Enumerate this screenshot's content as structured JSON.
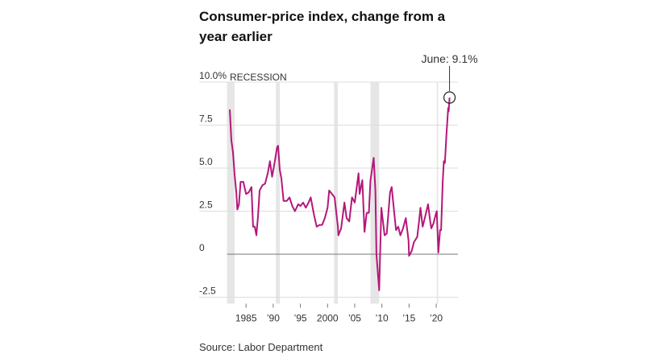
{
  "chart_data": {
    "type": "line",
    "title": "Consumer-price index, change from a year earlier",
    "source": "Source: Labor Department",
    "recession_label": "RECESSION",
    "annotation": "June: 9.1%",
    "recession_color": "#e6e6e6",
    "recessions": [
      [
        1981.5,
        1982.9
      ],
      [
        1990.5,
        1991.2
      ],
      [
        2001.2,
        2001.9
      ],
      [
        2007.9,
        2009.5
      ],
      [
        2020.1,
        2020.35
      ]
    ],
    "xlim": [
      1981.5,
      2024
    ],
    "ylim": [
      -2.5,
      10
    ],
    "xticks": [
      {
        "value": 1985,
        "label": "1985"
      },
      {
        "value": 1990,
        "label": "’90"
      },
      {
        "value": 1995,
        "label": "’95"
      },
      {
        "value": 2000,
        "label": "2000"
      },
      {
        "value": 2005,
        "label": "’05"
      },
      {
        "value": 2010,
        "label": "’10"
      },
      {
        "value": 2015,
        "label": "’15"
      },
      {
        "value": 2020,
        "label": "’20"
      }
    ],
    "yticks": [
      {
        "value": -2.5,
        "label": "-2.5"
      },
      0,
      2.5,
      {
        "value": 5,
        "label": "5.0"
      },
      7.5,
      {
        "value": 10,
        "label": "10.0%"
      }
    ],
    "grid": true,
    "series": [
      {
        "name": "CPI",
        "color": "#b5177a",
        "x": [
          1982.0,
          1982.3,
          1982.6,
          1982.9,
          1983.2,
          1983.4,
          1983.7,
          1984.0,
          1984.5,
          1985.0,
          1985.5,
          1986.0,
          1986.3,
          1986.6,
          1986.9,
          1987.2,
          1987.5,
          1988.0,
          1988.5,
          1989.0,
          1989.4,
          1989.8,
          1990.2,
          1990.7,
          1990.9,
          1991.2,
          1991.5,
          1991.9,
          1992.5,
          1993.0,
          1993.5,
          1994.0,
          1994.6,
          1995.0,
          1995.5,
          1996.0,
          1996.5,
          1996.9,
          1997.5,
          1998.0,
          1998.5,
          1999.0,
          1999.5,
          2000.0,
          2000.3,
          2000.8,
          2001.3,
          2001.9,
          2002.0,
          2002.5,
          2003.1,
          2003.5,
          2004.0,
          2004.5,
          2005.0,
          2005.7,
          2005.9,
          2006.4,
          2006.8,
          2007.2,
          2007.6,
          2007.9,
          2008.5,
          2008.8,
          2009.0,
          2009.5,
          2009.9,
          2010.5,
          2010.9,
          2011.5,
          2011.8,
          2012.3,
          2012.6,
          2013.0,
          2013.4,
          2013.9,
          2014.4,
          2014.9,
          2015.0,
          2015.5,
          2015.9,
          2016.5,
          2016.9,
          2017.1,
          2017.5,
          2017.9,
          2018.5,
          2018.9,
          2019.1,
          2019.5,
          2019.9,
          2020.1,
          2020.4,
          2020.7,
          2020.9,
          2021.2,
          2021.4,
          2021.6,
          2021.9,
          2022.2,
          2022.3,
          2022.45
        ],
        "values": [
          8.4,
          6.6,
          5.9,
          4.6,
          3.6,
          2.6,
          2.9,
          4.2,
          4.2,
          3.5,
          3.6,
          3.9,
          1.6,
          1.6,
          1.1,
          2.2,
          3.7,
          4.0,
          4.1,
          4.7,
          5.4,
          4.5,
          5.2,
          6.2,
          6.3,
          4.9,
          4.4,
          3.1,
          3.1,
          3.3,
          2.8,
          2.5,
          2.9,
          2.8,
          3.0,
          2.7,
          3.0,
          3.3,
          2.3,
          1.6,
          1.7,
          1.7,
          2.1,
          2.7,
          3.7,
          3.5,
          3.3,
          1.6,
          1.1,
          1.5,
          3.0,
          2.1,
          1.9,
          3.3,
          3.0,
          4.7,
          3.5,
          4.3,
          1.3,
          2.4,
          2.4,
          4.3,
          5.6,
          3.7,
          0.0,
          -2.1,
          2.7,
          1.1,
          1.2,
          3.6,
          3.9,
          2.3,
          1.4,
          1.6,
          1.1,
          1.5,
          2.1,
          0.8,
          -0.1,
          0.2,
          0.7,
          1.0,
          2.1,
          2.7,
          1.6,
          2.1,
          2.9,
          1.9,
          1.5,
          1.8,
          2.3,
          2.5,
          0.1,
          1.4,
          1.4,
          4.2,
          5.4,
          5.3,
          7.0,
          8.5,
          8.3,
          9.1
        ]
      }
    ]
  }
}
